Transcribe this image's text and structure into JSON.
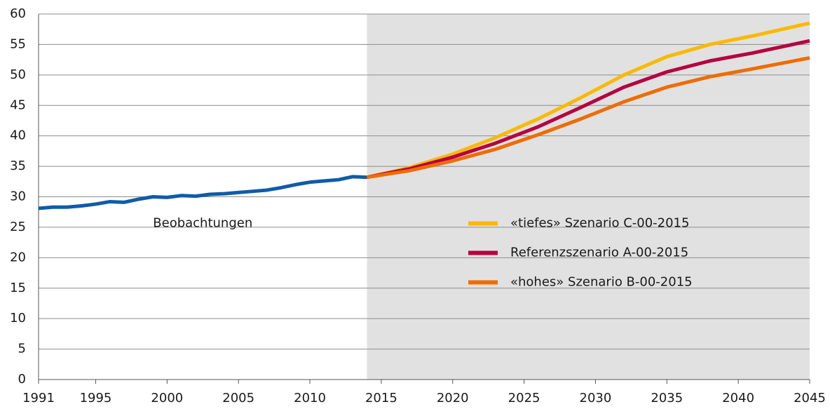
{
  "chart_data": {
    "type": "line",
    "xlim": [
      1991,
      2045
    ],
    "xticks": [
      1991,
      1995,
      2000,
      2005,
      2010,
      2015,
      2020,
      2025,
      2030,
      2035,
      2040,
      2045
    ],
    "ylim": [
      0,
      60
    ],
    "yticks": [
      0,
      5,
      10,
      15,
      20,
      25,
      30,
      35,
      40,
      45,
      50,
      55,
      60
    ],
    "grid": true,
    "legend": "center right",
    "series": [
      {
        "name": "Beobachtungen",
        "color": "#0f5ca8",
        "label": "inline",
        "x": [
          1991,
          1992,
          1993,
          1994,
          1995,
          1996,
          1997,
          1998,
          1999,
          2000,
          2001,
          2002,
          2003,
          2004,
          2005,
          2006,
          2007,
          2008,
          2009,
          2010,
          2011,
          2012,
          2013,
          2014
        ],
        "values": [
          28.1,
          28.3,
          28.3,
          28.5,
          28.8,
          29.2,
          29.1,
          29.6,
          30.0,
          29.9,
          30.2,
          30.1,
          30.4,
          30.5,
          30.7,
          30.9,
          31.1,
          31.5,
          32.0,
          32.4,
          32.6,
          32.8,
          33.3,
          33.2
        ]
      },
      {
        "name": "«tiefes» Szenario C-00-2015",
        "color": "#fbb900",
        "x": [
          2014,
          2017,
          2020,
          2023,
          2026,
          2029,
          2032,
          2035,
          2038,
          2041,
          2045
        ],
        "values": [
          33.2,
          34.8,
          37.0,
          39.7,
          42.8,
          46.3,
          50.0,
          53.0,
          55.0,
          56.4,
          58.5
        ]
      },
      {
        "name": "Referenzszenario A-00-2015",
        "color": "#b5003f",
        "x": [
          2014,
          2017,
          2020,
          2023,
          2026,
          2029,
          2032,
          2035,
          2038,
          2041,
          2045
        ],
        "values": [
          33.2,
          34.6,
          36.5,
          38.8,
          41.5,
          44.7,
          48.0,
          50.5,
          52.3,
          53.6,
          55.6
        ]
      },
      {
        "name": "«hohes» Szenario B-00-2015",
        "color": "#ef6c00",
        "x": [
          2014,
          2017,
          2020,
          2023,
          2026,
          2029,
          2032,
          2035,
          2038,
          2041,
          2045
        ],
        "values": [
          33.2,
          34.3,
          35.9,
          37.8,
          40.2,
          42.8,
          45.6,
          48.0,
          49.7,
          51.0,
          52.8
        ]
      }
    ]
  }
}
